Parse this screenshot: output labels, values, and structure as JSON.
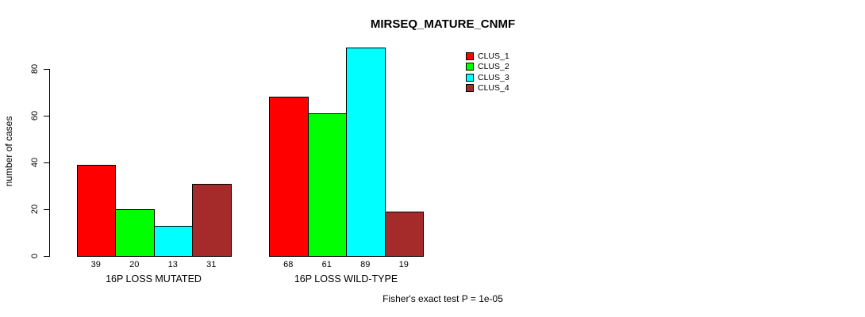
{
  "chart_data": {
    "type": "bar",
    "title": "MIRSEQ_MATURE_CNMF",
    "ylabel": "number of cases",
    "xlabel": "",
    "ylim": [
      0,
      89
    ],
    "yticks": [
      0,
      20,
      40,
      60,
      80
    ],
    "grid": false,
    "legend_position": "top-right",
    "categories": [
      "16P LOSS MUTATED",
      "16P LOSS WILD-TYPE"
    ],
    "series": [
      {
        "name": "CLUS_1",
        "color": "#ff0000",
        "values": [
          39,
          68
        ]
      },
      {
        "name": "CLUS_2",
        "color": "#00ff00",
        "values": [
          20,
          61
        ]
      },
      {
        "name": "CLUS_3",
        "color": "#00ffff",
        "values": [
          13,
          89
        ]
      },
      {
        "name": "CLUS_4",
        "color": "#a52a2a",
        "values": [
          31,
          19
        ]
      }
    ],
    "bar_value_labels": true,
    "annotation": "Fisher's exact test P = 1e-05",
    "axis_color": "#000000",
    "background_color": "#ffffff"
  }
}
